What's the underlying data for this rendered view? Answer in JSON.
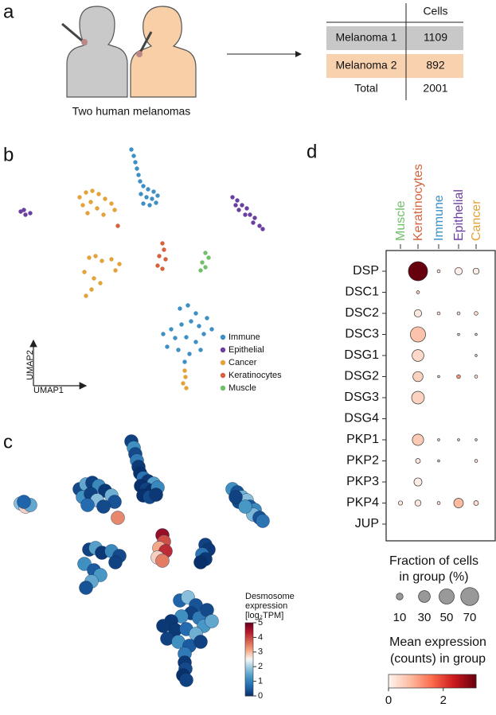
{
  "panel_labels": [
    "a",
    "b",
    "c",
    "d"
  ],
  "panel_a": {
    "caption": "Two human melanomas",
    "table": {
      "header": "Cells",
      "rows": [
        [
          "Melanoma 1",
          1109
        ],
        [
          "Melanoma 2",
          892
        ],
        [
          "Total",
          2001
        ]
      ]
    }
  },
  "chart_data": [
    {
      "type": "scatter",
      "x_label": "UMAP1",
      "y_label": "UMAP2",
      "xlim": [
        0,
        360
      ],
      "ylim": [
        0,
        310
      ],
      "legend": "lower-right",
      "series": [
        {
          "name": "Immune",
          "color": "#3d8fc4",
          "x": [
            150,
            153,
            155,
            157,
            159,
            161,
            165,
            171,
            178,
            162,
            169,
            176,
            183,
            165,
            173,
            181,
            211,
            221,
            231,
            225,
            213,
            200,
            235,
            245,
            241,
            205,
            219,
            231,
            195,
            209,
            223,
            217,
            237,
            251,
            190
          ],
          "y": [
            302,
            294,
            286,
            278,
            270,
            262,
            256,
            252,
            249,
            246,
            242,
            240,
            244,
            234,
            232,
            235,
            102,
            106,
            96,
            86,
            82,
            76,
            80,
            90,
            70,
            65,
            66,
            60,
            54,
            50,
            45,
            35,
            50,
            76,
            70
          ]
        },
        {
          "name": "Epithelial",
          "color": "#6a3fa0",
          "x": [
            11,
            17,
            23,
            15,
            277,
            283,
            289,
            285,
            295,
            299,
            305,
            303,
            311,
            315,
            293,
            281
          ],
          "y": [
            224,
            220,
            222,
            226,
            242,
            238,
            232,
            226,
            228,
            220,
            216,
            210,
            206,
            202,
            220,
            232
          ]
        },
        {
          "name": "Cancer",
          "color": "#e3a33a",
          "x": [
            85,
            93,
            101,
            109,
            117,
            125,
            129,
            89,
            99,
            107,
            115,
            95,
            97,
            105,
            113,
            125,
            135,
            130,
            91,
            103,
            111,
            100,
            93,
            217,
            218,
            215,
            219
          ],
          "y": [
            242,
            248,
            250,
            246,
            240,
            234,
            226,
            232,
            236,
            228,
            220,
            222,
            166,
            168,
            162,
            164,
            158,
            150,
            148,
            140,
            134,
            126,
            118,
            24,
            16,
            8,
            2
          ]
        },
        {
          "name": "Keratinocytes",
          "color": "#d3623d",
          "x": [
            133,
            189,
            191,
            185,
            193,
            183,
            189
          ],
          "y": [
            206,
            184,
            176,
            168,
            164,
            156,
            152
          ]
        },
        {
          "name": "Muscle",
          "color": "#72bf6a",
          "x": [
            243,
            247,
            239,
            243,
            237
          ],
          "y": [
            172,
            166,
            160,
            154,
            150
          ]
        }
      ]
    },
    {
      "type": "scatter",
      "title": [
        "Desmosome",
        "expression",
        "[log₂TPM]"
      ],
      "xlim": [
        0,
        360
      ],
      "ylim": [
        0,
        310
      ],
      "colorbar": {
        "lim": [
          0,
          5
        ],
        "ticks": [
          0,
          1,
          2,
          3,
          4,
          5
        ]
      },
      "x": [
        150,
        153,
        155,
        157,
        159,
        161,
        165,
        171,
        178,
        162,
        169,
        176,
        183,
        165,
        173,
        181,
        211,
        221,
        231,
        225,
        213,
        200,
        235,
        245,
        241,
        205,
        219,
        231,
        195,
        209,
        223,
        217,
        237,
        251,
        190,
        11,
        17,
        23,
        15,
        277,
        283,
        289,
        285,
        295,
        299,
        305,
        303,
        311,
        315,
        293,
        281,
        85,
        93,
        101,
        109,
        117,
        125,
        129,
        89,
        99,
        107,
        115,
        95,
        97,
        105,
        113,
        125,
        135,
        130,
        91,
        103,
        111,
        100,
        93,
        217,
        218,
        215,
        219,
        133,
        189,
        191,
        185,
        193,
        183,
        189,
        243,
        247,
        239,
        243,
        237
      ],
      "y": [
        302,
        294,
        286,
        278,
        270,
        262,
        256,
        252,
        249,
        246,
        242,
        240,
        244,
        234,
        232,
        235,
        102,
        106,
        96,
        86,
        82,
        76,
        80,
        90,
        70,
        65,
        66,
        60,
        54,
        50,
        45,
        35,
        50,
        76,
        70,
        224,
        220,
        222,
        226,
        242,
        238,
        232,
        226,
        228,
        220,
        216,
        210,
        206,
        202,
        220,
        232,
        242,
        248,
        250,
        246,
        240,
        234,
        226,
        232,
        236,
        228,
        220,
        222,
        166,
        168,
        162,
        164,
        158,
        150,
        148,
        140,
        134,
        126,
        118,
        24,
        16,
        8,
        2,
        206,
        184,
        176,
        168,
        164,
        156,
        152,
        172,
        166,
        160,
        154,
        150
      ],
      "values": [
        0.2,
        1.2,
        0.3,
        0.9,
        0.1,
        0,
        0.8,
        0.1,
        1.4,
        0,
        0.2,
        0,
        1.1,
        0,
        0.3,
        0.1,
        0.6,
        1.8,
        0.4,
        0.2,
        1.2,
        0.1,
        0.9,
        0.3,
        1.3,
        0.1,
        0.7,
        1.6,
        0.2,
        1.2,
        0.5,
        0.9,
        0.2,
        1.5,
        0.1,
        1.8,
        2.8,
        1.5,
        0.6,
        1.2,
        0.4,
        1.6,
        0.3,
        1.8,
        0.5,
        1.1,
        1.7,
        0.4,
        0.8,
        1.3,
        0.2,
        0.3,
        1.5,
        0.2,
        1.1,
        0.1,
        1.6,
        0.4,
        1.2,
        0.2,
        1.8,
        0.3,
        0.7,
        0.2,
        1.4,
        0.1,
        1.1,
        0.3,
        0.2,
        1.2,
        0.5,
        1.3,
        1.5,
        0.4,
        0.1,
        0.3,
        0,
        0.2,
        3.4,
        4.6,
        3.9,
        3.1,
        4.2,
        2.8,
        3.5,
        0.2,
        0.1,
        0.8,
        0.1,
        0
      ]
    },
    {
      "type": "dotplot",
      "categories": [
        "Muscle",
        "Keratinocytes",
        "Immune",
        "Epithelial",
        "Cancer"
      ],
      "category_colors": [
        "#72bf6a",
        "#d3623d",
        "#3d8fc4",
        "#6a3fa0",
        "#e3a33a"
      ],
      "genes": [
        "DSP",
        "DSC1",
        "DSC2",
        "DSC3",
        "DSG1",
        "DSG2",
        "DSG3",
        "DSG4",
        "PKP1",
        "PKP2",
        "PKP3",
        "PKP4",
        "JUP"
      ],
      "fraction": [
        [
          0,
          80,
          2,
          12,
          8
        ],
        [
          0,
          2,
          0,
          0,
          0
        ],
        [
          0,
          12,
          2,
          2,
          3
        ],
        [
          0,
          50,
          0,
          1,
          1
        ],
        [
          0,
          30,
          0,
          0,
          1
        ],
        [
          0,
          22,
          1,
          3,
          2
        ],
        [
          0,
          35,
          0,
          0,
          0
        ],
        [
          0,
          0,
          0,
          0,
          0
        ],
        [
          0,
          28,
          1,
          1,
          1
        ],
        [
          0,
          5,
          1,
          0,
          2
        ],
        [
          0,
          14,
          0,
          0,
          0
        ],
        [
          4,
          8,
          2,
          20,
          5
        ],
        [
          0,
          0,
          0,
          0,
          0
        ]
      ],
      "mean": [
        [
          0,
          3.2,
          0.2,
          0.1,
          0.1
        ],
        [
          0,
          0.5,
          0,
          0,
          0
        ],
        [
          0,
          0.2,
          0.2,
          0.3,
          0.3
        ],
        [
          0,
          0.7,
          0,
          0.3,
          0.3
        ],
        [
          0,
          0.4,
          0,
          0,
          0.3
        ],
        [
          0,
          0.5,
          0.3,
          1.2,
          0.3
        ],
        [
          0,
          0.5,
          0,
          0,
          0
        ],
        [
          0,
          0,
          0,
          0,
          0
        ],
        [
          0,
          0.6,
          0.3,
          0.3,
          0.3
        ],
        [
          0,
          0.2,
          0.3,
          0,
          0.3
        ],
        [
          0,
          0.1,
          0,
          0,
          0
        ],
        [
          0.2,
          0.2,
          0.3,
          0.8,
          0.3
        ],
        [
          0,
          0,
          0,
          0,
          0
        ]
      ],
      "size_legend": {
        "title": [
          "Fraction of cells",
          "in group (%)"
        ],
        "values": [
          10,
          30,
          50,
          70
        ]
      },
      "color_legend": {
        "title": [
          "Mean expression",
          "(counts) in group"
        ],
        "lim": [
          0,
          3.2
        ],
        "ticks": [
          0,
          2
        ]
      }
    }
  ]
}
